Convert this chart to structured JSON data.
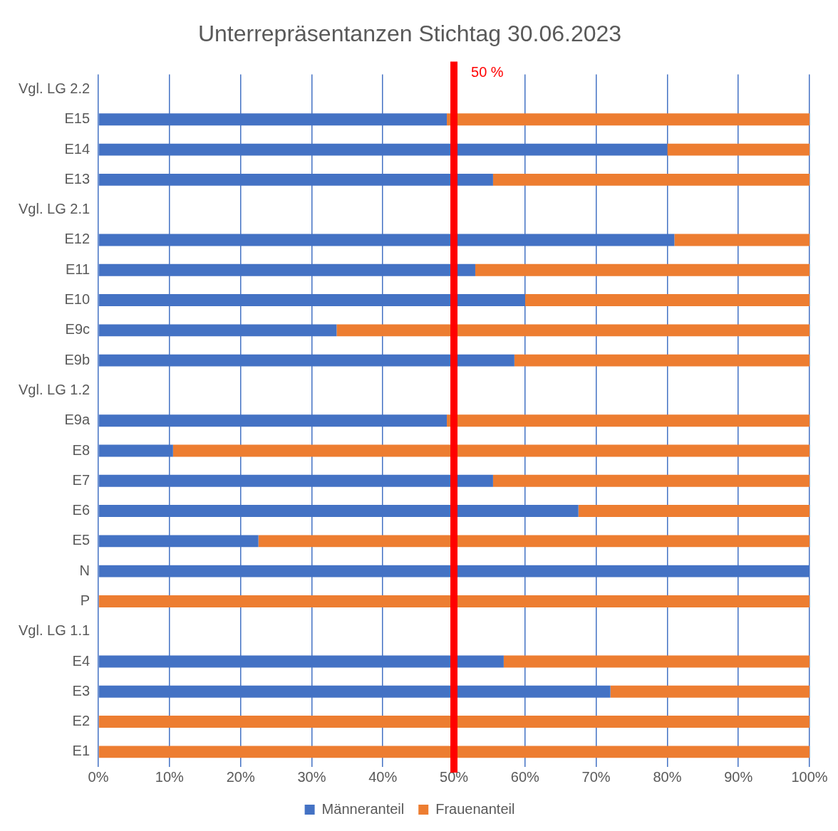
{
  "chart_data": {
    "type": "bar",
    "title": "Unterrepräsentanzen Stichtag 30.06.2023",
    "orientation": "horizontal",
    "stacked": true,
    "categories": [
      "Vgl. LG 2.2",
      "E15",
      "E14",
      "E13",
      "Vgl. LG 2.1",
      "E12",
      "E11",
      "E10",
      "E9c",
      "E9b",
      "Vgl. LG 1.2",
      "E9a",
      "E8",
      "E7",
      "E6",
      "E5",
      "N",
      "P",
      "Vgl. LG 1.1",
      "E4",
      "E3",
      "E2",
      "E1"
    ],
    "series": [
      {
        "name": "Männeranteil",
        "color": "#4472c4",
        "values": [
          null,
          49,
          80,
          55.5,
          null,
          81,
          53,
          60,
          33.5,
          58.5,
          null,
          49,
          10.5,
          55.5,
          67.5,
          22.5,
          100,
          0,
          null,
          57,
          72,
          0,
          0
        ]
      },
      {
        "name": "Frauenanteil",
        "color": "#ed7d31",
        "values": [
          null,
          51,
          20,
          44.5,
          null,
          19,
          47,
          40,
          66.5,
          41.5,
          null,
          51,
          89.5,
          44.5,
          32.5,
          77.5,
          0,
          100,
          null,
          43,
          28,
          100,
          100
        ]
      }
    ],
    "xlim": [
      0,
      100
    ],
    "xticks": [
      {
        "value": 0,
        "label": "0%"
      },
      {
        "value": 10,
        "label": "10%"
      },
      {
        "value": 20,
        "label": "20%"
      },
      {
        "value": 30,
        "label": "30%"
      },
      {
        "value": 40,
        "label": "40%"
      },
      {
        "value": 50,
        "label": "50%"
      },
      {
        "value": 60,
        "label": "60%"
      },
      {
        "value": 70,
        "label": "70%"
      },
      {
        "value": 80,
        "label": "80%"
      },
      {
        "value": 90,
        "label": "90%"
      },
      {
        "value": 100,
        "label": "100%"
      }
    ],
    "grid": "x",
    "legend": "bottom",
    "ref_lines": [
      {
        "axis": "x",
        "value": 50,
        "label": "50 %",
        "color": "#ff0000"
      }
    ]
  }
}
